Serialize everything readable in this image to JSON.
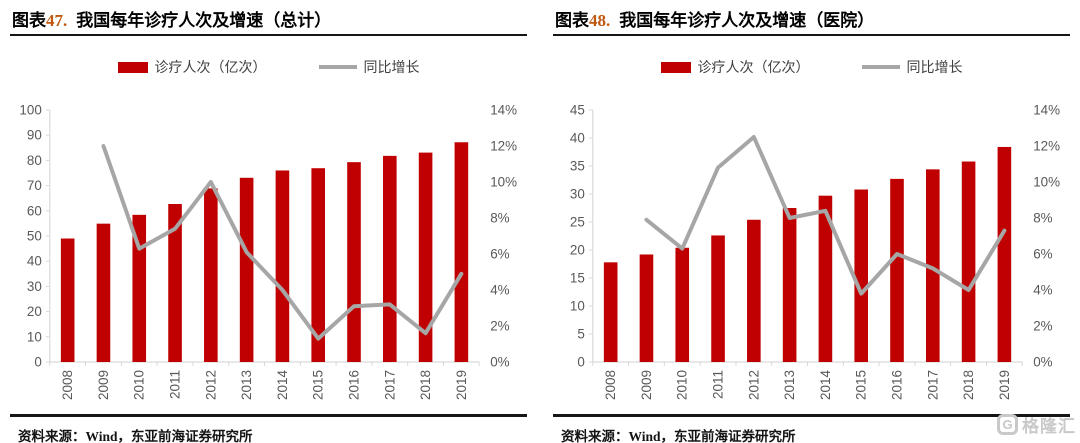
{
  "page": {
    "source_label": "资料来源：Wind，东亚前海证券研究所",
    "watermark": {
      "logo_letter": "G",
      "text": "格隆汇"
    },
    "colors": {
      "bar": "#c00000",
      "line": "#a6a6a6",
      "figure_number": "#c0570f",
      "title_rule": "#161616",
      "axis_text": "#595959",
      "axis_line": "#d9d9d9",
      "watermark": "#c9c9c9"
    }
  },
  "chart_data": [
    {
      "type": "bar+line",
      "title_label": "图表",
      "title_number": "47.",
      "title_text": "我国每年诊疗人次及增速（总计）",
      "categories": [
        "2008",
        "2009",
        "2010",
        "2011",
        "2012",
        "2013",
        "2014",
        "2015",
        "2016",
        "2017",
        "2018",
        "2019"
      ],
      "series": [
        {
          "name": "诊疗人次（亿次）",
          "type": "bar",
          "axis": "left",
          "color": "#c00000",
          "values": [
            49.0,
            54.9,
            58.4,
            62.7,
            68.9,
            73.1,
            76.0,
            76.9,
            79.3,
            81.8,
            83.1,
            87.2
          ]
        },
        {
          "name": "同比增长",
          "type": "line",
          "axis": "right",
          "color": "#a6a6a6",
          "values": [
            null,
            12.0,
            6.3,
            7.4,
            10.0,
            6.1,
            4.0,
            1.3,
            3.1,
            3.2,
            1.6,
            4.9
          ]
        }
      ],
      "left_axis": {
        "min": 0,
        "max": 100,
        "step": 10
      },
      "right_axis": {
        "min": 0,
        "max": 14,
        "step": 2,
        "suffix": "%"
      },
      "grid": false,
      "legend_position": "top"
    },
    {
      "type": "bar+line",
      "title_label": "图表",
      "title_number": "48.",
      "title_text": "我国每年诊疗人次及增速（医院）",
      "categories": [
        "2008",
        "2009",
        "2010",
        "2011",
        "2012",
        "2013",
        "2014",
        "2015",
        "2016",
        "2017",
        "2018",
        "2019"
      ],
      "series": [
        {
          "name": "诊疗人次（亿次）",
          "type": "bar",
          "axis": "left",
          "color": "#c00000",
          "values": [
            17.8,
            19.2,
            20.4,
            22.6,
            25.4,
            27.5,
            29.7,
            30.8,
            32.7,
            34.4,
            35.8,
            38.4
          ]
        },
        {
          "name": "同比增长",
          "type": "line",
          "axis": "right",
          "color": "#a6a6a6",
          "values": [
            null,
            7.9,
            6.3,
            10.8,
            12.5,
            8.0,
            8.4,
            3.8,
            6.0,
            5.2,
            4.0,
            7.3
          ]
        }
      ],
      "left_axis": {
        "min": 0,
        "max": 45,
        "step": 5
      },
      "right_axis": {
        "min": 0,
        "max": 14,
        "step": 2,
        "suffix": "%"
      },
      "grid": false,
      "legend_position": "top"
    }
  ]
}
